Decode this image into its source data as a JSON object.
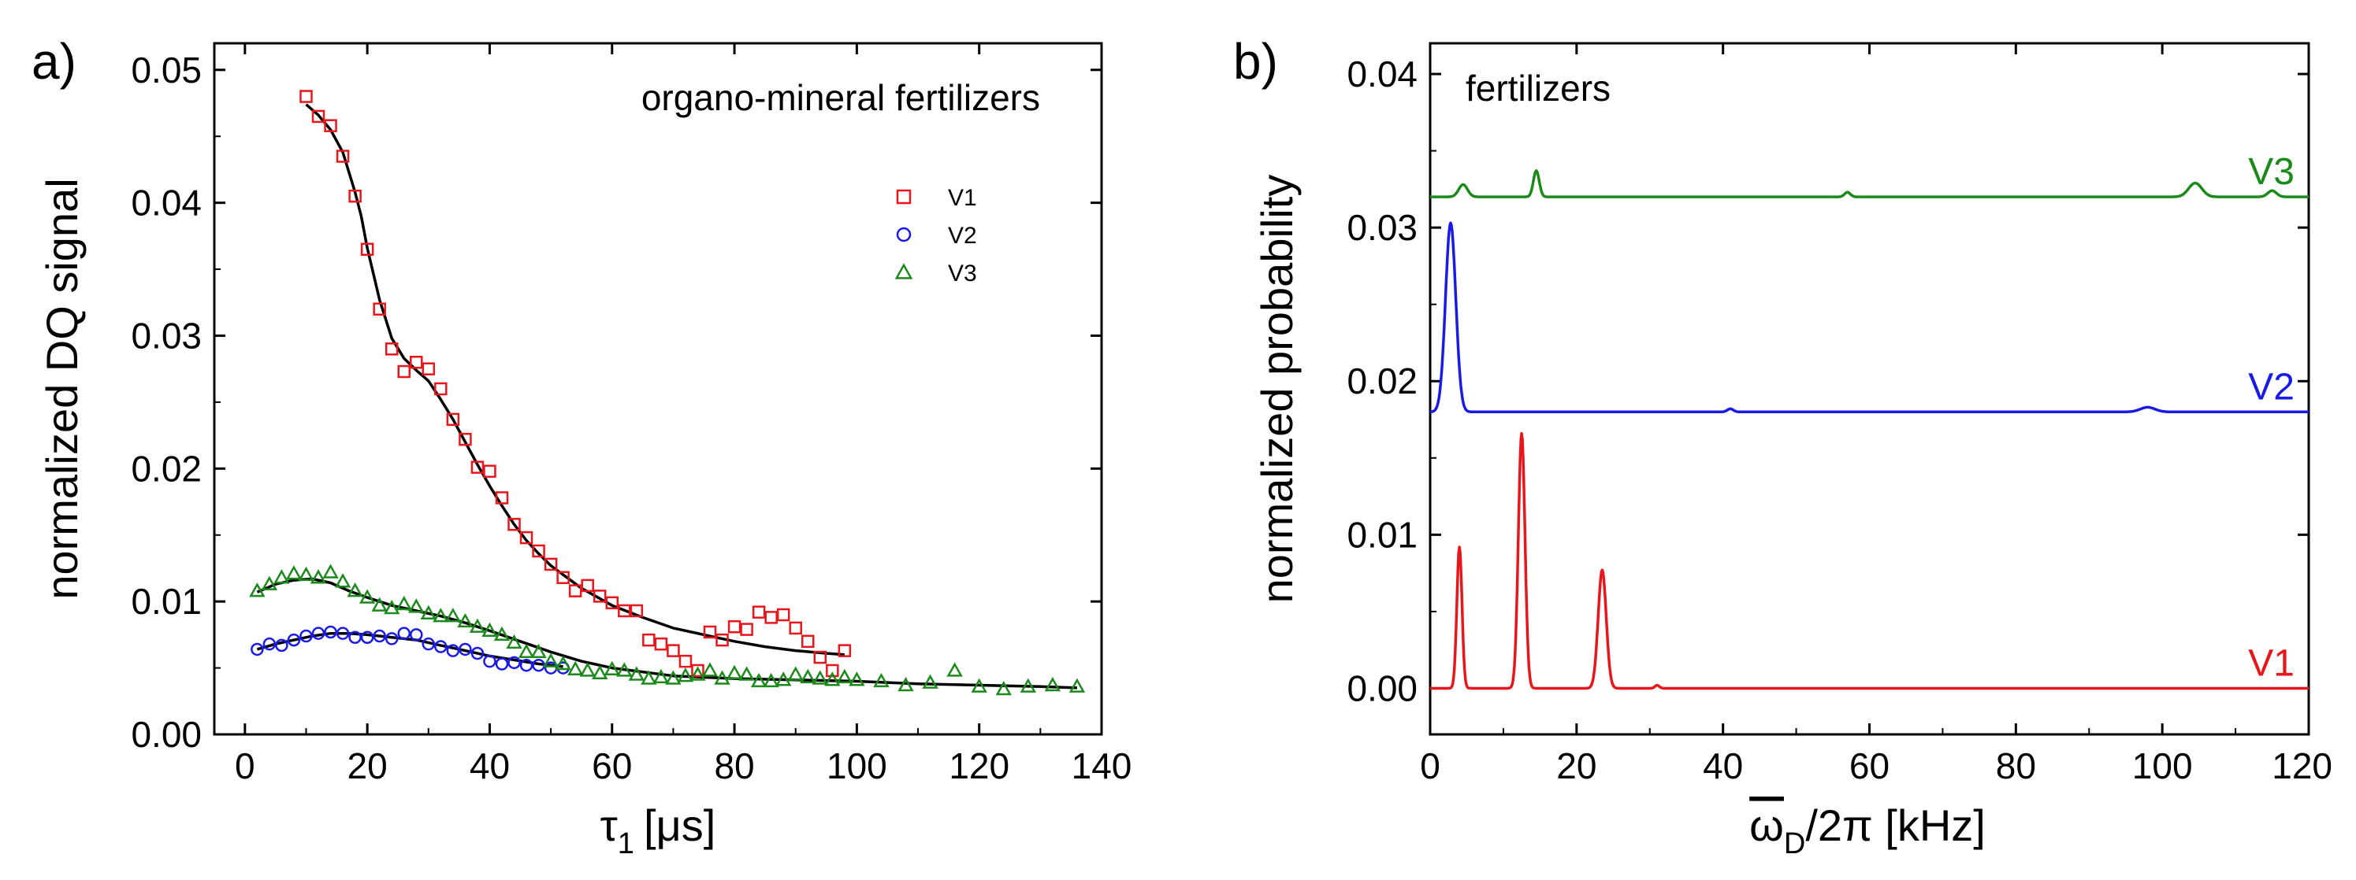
{
  "panel_a": {
    "label": "a)",
    "annotation": "organo-mineral fertilizers",
    "xlabel": "τ",
    "xlabel_sub": "1",
    "xlabel_unit": "[μs]",
    "ylabel": "normalized DQ signal"
  },
  "panel_b": {
    "label": "b)",
    "annotation": "fertilizers",
    "xlabel_symbol": "ω",
    "xlabel_sub": "D",
    "xlabel_rest": "/2π [kHz]",
    "ylabel": "normalized probability"
  },
  "colors": {
    "V1": "#e8161b",
    "V2": "#1a1ae6",
    "V3": "#1a8a1a",
    "fit": "#000000"
  },
  "chart_data": [
    {
      "type": "scatter",
      "title": "organo-mineral fertilizers",
      "xlabel": "τ1 [μs]",
      "ylabel": "normalized DQ signal",
      "xlim": [
        -5,
        140
      ],
      "ylim": [
        0,
        0.052
      ],
      "xticks": [
        0,
        20,
        40,
        60,
        80,
        100,
        120,
        140
      ],
      "xtick_labels": [
        "0",
        "20",
        "40",
        "60",
        "80",
        "100",
        "120",
        "140"
      ],
      "yticks": [
        0,
        0.01,
        0.02,
        0.03,
        0.04,
        0.05
      ],
      "ytick_labels": [
        "0.00",
        "0.01",
        "0.02",
        "0.03",
        "0.04",
        "0.05"
      ],
      "legend": [
        "V1",
        "V2",
        "V3"
      ],
      "legend_position": "upper-right",
      "series": [
        {
          "name": "V1",
          "marker": "square",
          "x": [
            10,
            12,
            14,
            16,
            18,
            20,
            22,
            24,
            26,
            28,
            30,
            32,
            34,
            36,
            38,
            40,
            42,
            44,
            46,
            48,
            50,
            52,
            54,
            56,
            58,
            60,
            62,
            64,
            66,
            68,
            70,
            72,
            74,
            76,
            78,
            80,
            82,
            84,
            86,
            88,
            90,
            92,
            94,
            96,
            98
          ],
          "y": [
            0.048,
            0.0465,
            0.0458,
            0.0435,
            0.0405,
            0.0365,
            0.032,
            0.029,
            0.0273,
            0.028,
            0.0275,
            0.026,
            0.0237,
            0.0222,
            0.0201,
            0.0198,
            0.0178,
            0.0158,
            0.0148,
            0.0138,
            0.0128,
            0.0118,
            0.0108,
            0.0112,
            0.0104,
            0.0099,
            0.0093,
            0.0093,
            0.0071,
            0.0068,
            0.0063,
            0.0055,
            0.0048,
            0.0077,
            0.0071,
            0.0081,
            0.0079,
            0.0092,
            0.0088,
            0.009,
            0.008,
            0.007,
            0.0058,
            0.0048,
            0.0063
          ]
        },
        {
          "name": "V2",
          "marker": "circle",
          "x": [
            2,
            4,
            6,
            8,
            10,
            12,
            14,
            16,
            18,
            20,
            22,
            24,
            26,
            28,
            30,
            32,
            34,
            36,
            38,
            40,
            42,
            44,
            46,
            48,
            50,
            52
          ],
          "y": [
            0.0064,
            0.0068,
            0.0067,
            0.0071,
            0.0074,
            0.0076,
            0.0077,
            0.0076,
            0.0073,
            0.0073,
            0.0074,
            0.0072,
            0.0076,
            0.0075,
            0.0068,
            0.0066,
            0.0063,
            0.0064,
            0.0061,
            0.0055,
            0.0053,
            0.0054,
            0.0052,
            0.0052,
            0.005,
            0.005
          ]
        },
        {
          "name": "V3",
          "marker": "triangle",
          "x": [
            2,
            4,
            6,
            8,
            10,
            12,
            14,
            16,
            18,
            20,
            22,
            24,
            26,
            28,
            30,
            32,
            34,
            36,
            38,
            40,
            42,
            44,
            46,
            48,
            50,
            52,
            54,
            56,
            58,
            60,
            62,
            64,
            66,
            68,
            70,
            72,
            74,
            76,
            78,
            80,
            82,
            84,
            86,
            88,
            90,
            92,
            94,
            96,
            98,
            100,
            104,
            108,
            112,
            116,
            120,
            124,
            128,
            132,
            136
          ],
          "y": [
            0.0108,
            0.0113,
            0.0118,
            0.0121,
            0.012,
            0.0118,
            0.0122,
            0.0115,
            0.0108,
            0.0103,
            0.0097,
            0.0095,
            0.0098,
            0.0096,
            0.0091,
            0.0089,
            0.0089,
            0.0085,
            0.0081,
            0.0078,
            0.0075,
            0.0069,
            0.0062,
            0.0062,
            0.0055,
            0.0053,
            0.0049,
            0.0048,
            0.0046,
            0.0049,
            0.0048,
            0.0045,
            0.0042,
            0.0043,
            0.0042,
            0.0044,
            0.0045,
            0.0048,
            0.0042,
            0.0046,
            0.0045,
            0.004,
            0.004,
            0.0041,
            0.0045,
            0.0043,
            0.0042,
            0.0041,
            0.0043,
            0.0041,
            0.004,
            0.0037,
            0.0039,
            0.0048,
            0.0036,
            0.0034,
            0.0036,
            0.0037,
            0.0036
          ]
        }
      ],
      "fits": [
        {
          "name": "V1 fit",
          "x": [
            10,
            12,
            14,
            16,
            18,
            19,
            20,
            22,
            24,
            26,
            28,
            30,
            32,
            34,
            36,
            38,
            40,
            42,
            44,
            46,
            48,
            50,
            55,
            60,
            65,
            70,
            75,
            80,
            85,
            90,
            95,
            98
          ],
          "y": [
            0.0474,
            0.0466,
            0.0455,
            0.0438,
            0.0408,
            0.039,
            0.0366,
            0.0327,
            0.0298,
            0.0283,
            0.0274,
            0.0266,
            0.0252,
            0.0237,
            0.022,
            0.0203,
            0.0187,
            0.0172,
            0.0158,
            0.0146,
            0.0136,
            0.0127,
            0.011,
            0.0097,
            0.0088,
            0.008,
            0.0075,
            0.007,
            0.0066,
            0.0063,
            0.0061,
            0.006
          ]
        },
        {
          "name": "V2 fit",
          "x": [
            2,
            5,
            8,
            11,
            14,
            17,
            20,
            24,
            28,
            32,
            36,
            40,
            44,
            48,
            52
          ],
          "y": [
            0.0064,
            0.0068,
            0.0071,
            0.0074,
            0.0076,
            0.0076,
            0.0075,
            0.0073,
            0.0071,
            0.0067,
            0.0063,
            0.0059,
            0.0056,
            0.0053,
            0.0051
          ]
        },
        {
          "name": "V3 fit",
          "x": [
            2,
            5,
            8,
            11,
            14,
            17,
            20,
            24,
            28,
            32,
            36,
            40,
            45,
            50,
            55,
            60,
            70,
            80,
            90,
            100,
            110,
            120,
            130,
            136
          ],
          "y": [
            0.0107,
            0.0113,
            0.0116,
            0.0117,
            0.0114,
            0.0108,
            0.0103,
            0.0097,
            0.0093,
            0.0089,
            0.0084,
            0.0078,
            0.007,
            0.0062,
            0.0055,
            0.005,
            0.0044,
            0.0042,
            0.0041,
            0.004,
            0.0038,
            0.0037,
            0.0036,
            0.0035
          ]
        }
      ]
    },
    {
      "type": "line",
      "title": "fertilizers",
      "xlabel": "ω̄D/2π [kHz]",
      "ylabel": "normalized probability",
      "xlim": [
        0,
        120
      ],
      "ylim": [
        -0.003,
        0.042
      ],
      "xticks": [
        0,
        20,
        40,
        60,
        80,
        100,
        120
      ],
      "xtick_labels": [
        "0",
        "20",
        "40",
        "60",
        "80",
        "100",
        "120"
      ],
      "yticks": [
        0,
        0.01,
        0.02,
        0.03,
        0.04
      ],
      "ytick_labels": [
        "0.00",
        "0.01",
        "0.02",
        "0.03",
        "0.04"
      ],
      "series": [
        {
          "name": "V1",
          "label": "V1",
          "baseline": 0.0,
          "peaks": [
            {
              "center": 4,
              "height": 0.0092,
              "width": 0.35
            },
            {
              "center": 12.5,
              "height": 0.0166,
              "width": 0.45
            },
            {
              "center": 23.5,
              "height": 0.0077,
              "width": 0.55
            },
            {
              "center": 31,
              "height": 0.0002,
              "width": 0.3
            }
          ]
        },
        {
          "name": "V2",
          "label": "V2",
          "baseline": 0.018,
          "peaks": [
            {
              "center": 2.8,
              "height": 0.0123,
              "width": 0.7
            },
            {
              "center": 41,
              "height": 0.0002,
              "width": 0.4
            },
            {
              "center": 98,
              "height": 0.0003,
              "width": 1.0
            }
          ]
        },
        {
          "name": "V3",
          "label": "V3",
          "baseline": 0.032,
          "peaks": [
            {
              "center": 4.5,
              "height": 0.0008,
              "width": 0.6
            },
            {
              "center": 14.5,
              "height": 0.0017,
              "width": 0.4
            },
            {
              "center": 57,
              "height": 0.0003,
              "width": 0.4
            },
            {
              "center": 104.5,
              "height": 0.0009,
              "width": 0.9
            },
            {
              "center": 115,
              "height": 0.0004,
              "width": 0.6
            }
          ]
        }
      ]
    }
  ]
}
